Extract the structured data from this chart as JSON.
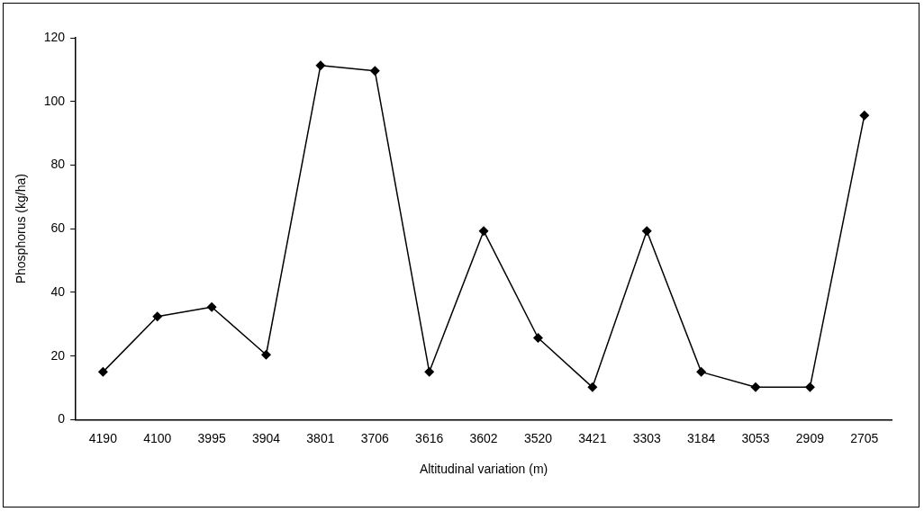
{
  "chart_data": {
    "type": "line",
    "xlabel": "Altitudinal variation (m)",
    "ylabel": "Phosphorus (kg/ha)",
    "categories": [
      "4190",
      "4100",
      "3995",
      "3904",
      "3801",
      "3706",
      "3616",
      "3602",
      "3520",
      "3421",
      "3303",
      "3184",
      "3053",
      "2909",
      "2705"
    ],
    "series": [
      {
        "color": "#000000",
        "values": [
          15,
          32.4,
          35.4,
          20.4,
          111.3,
          109.6,
          15,
          59.3,
          25.7,
          10.2,
          59.3,
          15,
          10.2,
          10.2,
          95.6
        ]
      }
    ],
    "ylim": [
      0,
      120
    ],
    "yticks": [
      0,
      20,
      40,
      60,
      80,
      100,
      120
    ],
    "grid": false,
    "legend": false,
    "marker": "diamond",
    "line_style": "solid"
  }
}
